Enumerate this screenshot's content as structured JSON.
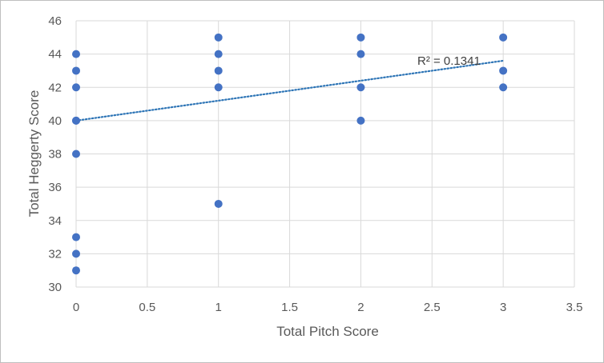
{
  "chart_data": {
    "type": "scatter",
    "title": "",
    "xlabel": "Total Pitch Score",
    "ylabel": "Total Heggerty Score",
    "xlim": [
      0,
      3.5
    ],
    "ylim": [
      30,
      46
    ],
    "xticks": [
      0,
      0.5,
      1,
      1.5,
      2,
      2.5,
      3,
      3.5
    ],
    "xtick_labels": [
      "0",
      "0.5",
      "1",
      "1.5",
      "2",
      "2.5",
      "3",
      "3.5"
    ],
    "yticks": [
      30,
      32,
      34,
      36,
      38,
      40,
      42,
      44,
      46
    ],
    "ytick_labels": [
      "30",
      "32",
      "34",
      "36",
      "38",
      "40",
      "42",
      "44",
      "46"
    ],
    "grid": true,
    "legend": "none",
    "series": [
      {
        "x": [
          0,
          0,
          0,
          0,
          0,
          0,
          0,
          0,
          0,
          1,
          1,
          1,
          1,
          1,
          2,
          2,
          2,
          2,
          3,
          3,
          3
        ],
        "y": [
          44,
          43,
          42,
          40,
          38,
          33,
          32,
          31,
          40,
          45,
          44,
          43,
          42,
          35,
          45,
          44,
          42,
          40,
          45,
          43,
          42
        ]
      }
    ],
    "trendline": {
      "type": "linear",
      "style": "dotted",
      "x_range": [
        0,
        3
      ],
      "intercept": 40.0,
      "slope": 1.2,
      "annotation": "R² = 0.1341"
    },
    "colors": {
      "marker": "#4472c4",
      "trendline": "#2e75b6",
      "grid": "#d9d9d9"
    }
  }
}
